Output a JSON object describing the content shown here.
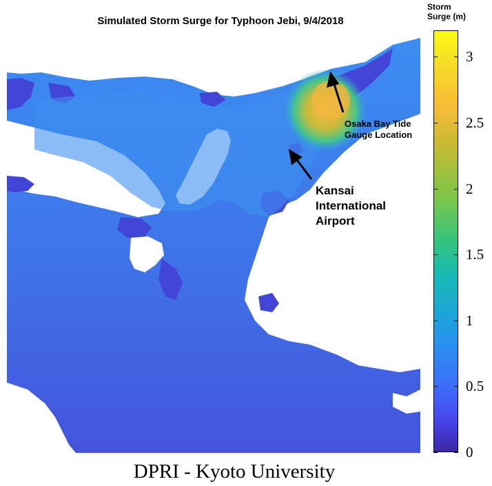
{
  "title": "Simulated Storm Surge for Typhoon Jebi, 9/4/2018",
  "annotations": {
    "osaka_line1": "Osaka Bay Tide",
    "osaka_line2": "Gauge Location",
    "kansai_line1": "Kansai",
    "kansai_line2": "International",
    "kansai_line3": "Airport"
  },
  "colorbar": {
    "label_line1": "Storm",
    "label_line2": "Surge (m)",
    "min": 0,
    "max": 3.2,
    "ticks": [
      "0",
      "0.5",
      "1",
      "1.5",
      "2",
      "2.5",
      "3"
    ],
    "colormap": "parula"
  },
  "footer": "DPRI - Kyoto University",
  "colors": {
    "land": "#ffffff",
    "low_surge": "#4146d6",
    "sea_base": "#3f7fe8",
    "high_surge": "#f5b942"
  }
}
